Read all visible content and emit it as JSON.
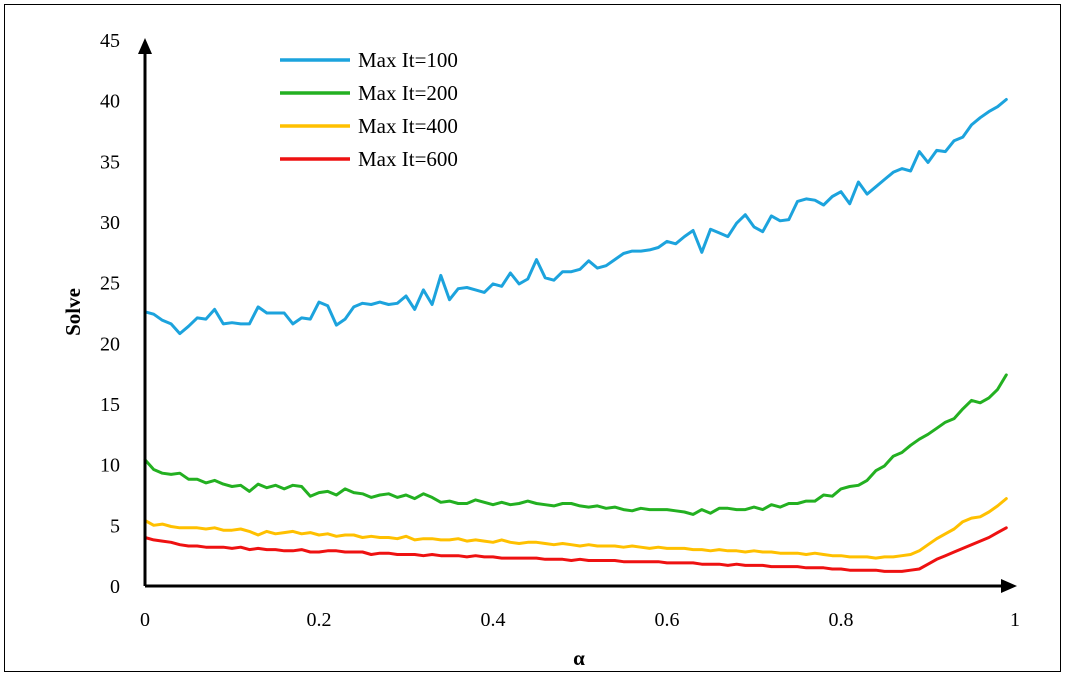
{
  "chart_data": {
    "type": "line",
    "xlabel": "α",
    "ylabel": "Solve",
    "xlim": [
      0,
      1
    ],
    "ylim": [
      0,
      45
    ],
    "x_ticks": [
      "0",
      "0.2",
      "0.4",
      "0.6",
      "0.8",
      "1"
    ],
    "y_ticks": [
      "0",
      "5",
      "10",
      "15",
      "20",
      "25",
      "30",
      "35",
      "40",
      "45"
    ],
    "grid": false,
    "legend_position": "top-left",
    "x": [
      0.0,
      0.01,
      0.02,
      0.03,
      0.04,
      0.05,
      0.06,
      0.07,
      0.08,
      0.09,
      0.1,
      0.11,
      0.12,
      0.13,
      0.14,
      0.15,
      0.16,
      0.17,
      0.18,
      0.19,
      0.2,
      0.21,
      0.22,
      0.23,
      0.24,
      0.25,
      0.26,
      0.27,
      0.28,
      0.29,
      0.3,
      0.31,
      0.32,
      0.33,
      0.34,
      0.35,
      0.36,
      0.37,
      0.38,
      0.39,
      0.4,
      0.41,
      0.42,
      0.43,
      0.44,
      0.45,
      0.46,
      0.47,
      0.48,
      0.49,
      0.5,
      0.51,
      0.52,
      0.53,
      0.54,
      0.55,
      0.56,
      0.57,
      0.58,
      0.59,
      0.6,
      0.61,
      0.62,
      0.63,
      0.64,
      0.65,
      0.66,
      0.67,
      0.68,
      0.69,
      0.7,
      0.71,
      0.72,
      0.73,
      0.74,
      0.75,
      0.76,
      0.77,
      0.78,
      0.79,
      0.8,
      0.81,
      0.82,
      0.83,
      0.84,
      0.85,
      0.86,
      0.87,
      0.88,
      0.89,
      0.9,
      0.91,
      0.92,
      0.93,
      0.94,
      0.95,
      0.96,
      0.97,
      0.98,
      0.99
    ],
    "series": [
      {
        "name": "Max It=100",
        "color": "#1ca3dd",
        "values": [
          22.6,
          22.4,
          21.9,
          21.6,
          20.8,
          21.4,
          22.1,
          22.0,
          22.8,
          21.6,
          21.7,
          21.6,
          21.6,
          23.0,
          22.5,
          22.5,
          22.5,
          21.6,
          22.1,
          22.0,
          23.4,
          23.1,
          21.5,
          22.0,
          23.0,
          23.3,
          23.2,
          23.4,
          23.2,
          23.3,
          23.9,
          22.8,
          24.4,
          23.2,
          25.6,
          23.6,
          24.5,
          24.6,
          24.4,
          24.2,
          24.9,
          24.7,
          25.8,
          24.9,
          25.3,
          26.9,
          25.4,
          25.2,
          25.9,
          25.9,
          26.1,
          26.8,
          26.2,
          26.4,
          26.9,
          27.4,
          27.6,
          27.6,
          27.7,
          27.9,
          28.4,
          28.2,
          28.8,
          29.3,
          27.5,
          29.4,
          29.1,
          28.8,
          29.9,
          30.6,
          29.6,
          29.2,
          30.5,
          30.1,
          30.2,
          31.7,
          31.9,
          31.8,
          31.4,
          32.1,
          32.5,
          31.5,
          33.3,
          32.3,
          32.9,
          33.5,
          34.1,
          34.4,
          34.2,
          35.8,
          34.9,
          35.9,
          35.8,
          36.7,
          37.0,
          38.0,
          38.6,
          39.1,
          39.5,
          40.1
        ]
      },
      {
        "name": "Max It=200",
        "color": "#23b021",
        "values": [
          10.4,
          9.6,
          9.3,
          9.2,
          9.3,
          8.8,
          8.8,
          8.5,
          8.7,
          8.4,
          8.2,
          8.3,
          7.8,
          8.4,
          8.1,
          8.3,
          8.0,
          8.3,
          8.2,
          7.4,
          7.7,
          7.8,
          7.5,
          8.0,
          7.7,
          7.6,
          7.3,
          7.5,
          7.6,
          7.3,
          7.5,
          7.2,
          7.6,
          7.3,
          6.9,
          7.0,
          6.8,
          6.8,
          7.1,
          6.9,
          6.7,
          6.9,
          6.7,
          6.8,
          7.0,
          6.8,
          6.7,
          6.6,
          6.8,
          6.8,
          6.6,
          6.5,
          6.6,
          6.4,
          6.5,
          6.3,
          6.2,
          6.4,
          6.3,
          6.3,
          6.3,
          6.2,
          6.1,
          5.9,
          6.3,
          6.0,
          6.4,
          6.4,
          6.3,
          6.3,
          6.5,
          6.3,
          6.7,
          6.5,
          6.8,
          6.8,
          7.0,
          7.0,
          7.5,
          7.4,
          8.0,
          8.2,
          8.3,
          8.7,
          9.5,
          9.9,
          10.7,
          11.0,
          11.6,
          12.1,
          12.5,
          13.0,
          13.5,
          13.8,
          14.6,
          15.3,
          15.1,
          15.5,
          16.2,
          17.4
        ]
      },
      {
        "name": "Max It=400",
        "color": "#ffc000",
        "values": [
          5.4,
          5.0,
          5.1,
          4.9,
          4.8,
          4.8,
          4.8,
          4.7,
          4.8,
          4.6,
          4.6,
          4.7,
          4.5,
          4.2,
          4.5,
          4.3,
          4.4,
          4.5,
          4.3,
          4.4,
          4.2,
          4.3,
          4.1,
          4.2,
          4.2,
          4.0,
          4.1,
          4.0,
          4.0,
          3.9,
          4.1,
          3.8,
          3.9,
          3.9,
          3.8,
          3.8,
          3.9,
          3.7,
          3.8,
          3.7,
          3.6,
          3.8,
          3.6,
          3.5,
          3.6,
          3.6,
          3.5,
          3.4,
          3.5,
          3.4,
          3.3,
          3.4,
          3.3,
          3.3,
          3.3,
          3.2,
          3.3,
          3.2,
          3.1,
          3.2,
          3.1,
          3.1,
          3.1,
          3.0,
          3.0,
          2.9,
          3.0,
          2.9,
          2.9,
          2.8,
          2.9,
          2.8,
          2.8,
          2.7,
          2.7,
          2.7,
          2.6,
          2.7,
          2.6,
          2.5,
          2.5,
          2.4,
          2.4,
          2.4,
          2.3,
          2.4,
          2.4,
          2.5,
          2.6,
          2.9,
          3.4,
          3.9,
          4.3,
          4.7,
          5.3,
          5.6,
          5.7,
          6.1,
          6.6,
          7.2
        ]
      },
      {
        "name": "Max It=600",
        "color": "#ee1111",
        "values": [
          4.0,
          3.8,
          3.7,
          3.6,
          3.4,
          3.3,
          3.3,
          3.2,
          3.2,
          3.2,
          3.1,
          3.2,
          3.0,
          3.1,
          3.0,
          3.0,
          2.9,
          2.9,
          3.0,
          2.8,
          2.8,
          2.9,
          2.9,
          2.8,
          2.8,
          2.8,
          2.6,
          2.7,
          2.7,
          2.6,
          2.6,
          2.6,
          2.5,
          2.6,
          2.5,
          2.5,
          2.5,
          2.4,
          2.5,
          2.4,
          2.4,
          2.3,
          2.3,
          2.3,
          2.3,
          2.3,
          2.2,
          2.2,
          2.2,
          2.1,
          2.2,
          2.1,
          2.1,
          2.1,
          2.1,
          2.0,
          2.0,
          2.0,
          2.0,
          2.0,
          1.9,
          1.9,
          1.9,
          1.9,
          1.8,
          1.8,
          1.8,
          1.7,
          1.8,
          1.7,
          1.7,
          1.7,
          1.6,
          1.6,
          1.6,
          1.6,
          1.5,
          1.5,
          1.5,
          1.4,
          1.4,
          1.3,
          1.3,
          1.3,
          1.3,
          1.2,
          1.2,
          1.2,
          1.3,
          1.4,
          1.8,
          2.2,
          2.5,
          2.8,
          3.1,
          3.4,
          3.7,
          4.0,
          4.4,
          4.8
        ]
      }
    ]
  }
}
